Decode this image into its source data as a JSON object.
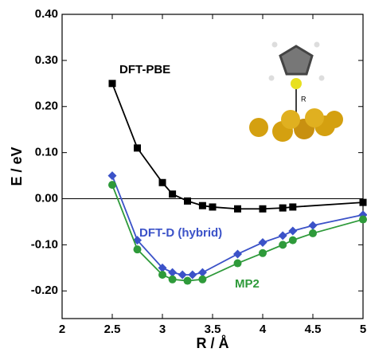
{
  "chart_data": {
    "type": "line",
    "xlabel": "R / Å",
    "ylabel": "E / eV",
    "xlim": [
      2,
      5
    ],
    "ylim": [
      -0.26,
      0.4
    ],
    "xticks": [
      2,
      2.5,
      3,
      3.5,
      4,
      4.5,
      5
    ],
    "yticks": [
      {
        "value": 0.4,
        "label": "0.40"
      },
      {
        "value": 0.3,
        "label": "0.30"
      },
      {
        "value": 0.2,
        "label": "0.20"
      },
      {
        "value": 0.1,
        "label": "0.10"
      },
      {
        "value": 0,
        "label": "0.00"
      },
      {
        "value": -0.1,
        "label": "-0.10"
      },
      {
        "value": -0.2,
        "label": "-0.20"
      }
    ],
    "inset_label": "R",
    "series": [
      {
        "name": "DFT-PBE",
        "color": "#000000",
        "marker": "square",
        "x": [
          2.5,
          2.75,
          3.0,
          3.1,
          3.25,
          3.4,
          3.5,
          3.75,
          4.0,
          4.2,
          4.3,
          5.0
        ],
        "values": [
          0.25,
          0.11,
          0.035,
          0.01,
          -0.005,
          -0.015,
          -0.018,
          -0.022,
          -0.022,
          -0.02,
          -0.018,
          -0.008
        ]
      },
      {
        "name": "DFT-D (hybrid)",
        "color": "#3b52c8",
        "marker": "diamond",
        "x": [
          2.5,
          2.75,
          3.0,
          3.1,
          3.2,
          3.3,
          3.4,
          3.75,
          4.0,
          4.2,
          4.3,
          4.5,
          5.0
        ],
        "values": [
          0.05,
          -0.09,
          -0.15,
          -0.16,
          -0.165,
          -0.165,
          -0.16,
          -0.12,
          -0.095,
          -0.08,
          -0.07,
          -0.058,
          -0.035
        ]
      },
      {
        "name": "MP2",
        "color": "#2e9a3a",
        "marker": "circle",
        "x": [
          2.5,
          2.75,
          3.0,
          3.1,
          3.25,
          3.4,
          3.75,
          4.0,
          4.2,
          4.3,
          4.5,
          5.0
        ],
        "values": [
          0.03,
          -0.11,
          -0.165,
          -0.175,
          -0.178,
          -0.175,
          -0.14,
          -0.118,
          -0.1,
          -0.09,
          -0.075,
          -0.045
        ]
      }
    ]
  }
}
